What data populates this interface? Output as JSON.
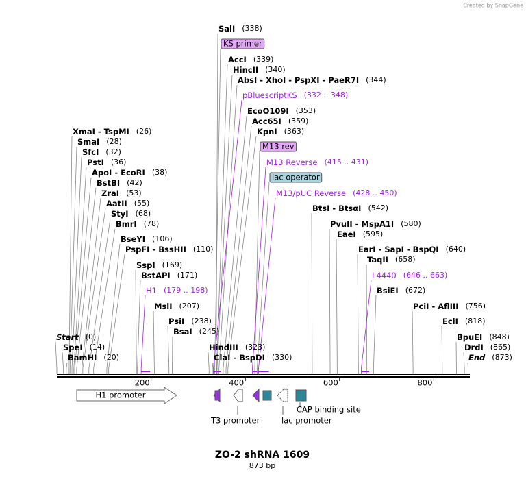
{
  "watermark": "Created by SnapGene",
  "title": "ZO-2 shRNA 1609",
  "length": "873 bp",
  "ruler": {
    "ticks": [
      200,
      400,
      600,
      800
    ]
  },
  "labels": [
    {
      "name": "SalI",
      "position": "(338)"
    },
    {
      "box": "KS primer",
      "color": "#e3a8f5"
    },
    {
      "name": "AccI",
      "position": "(339)"
    },
    {
      "name": "HincII",
      "position": "(340)"
    },
    {
      "name": "AbsI  - XhoI  - PspXI  - PaeR7I",
      "position": "(344)"
    },
    {
      "feature": "pBluescriptKS",
      "position": "(332 .. 348)",
      "color": "#a020f0"
    },
    {
      "name": "EcoO109I",
      "position": "(353)"
    },
    {
      "name": "Acc65I",
      "position": "(359)"
    },
    {
      "name": "KpnI",
      "position": "(363)"
    },
    {
      "box": "M13 rev",
      "color": "#e3a8f5"
    },
    {
      "feature": "M13 Reverse",
      "position": "(415 .. 431)",
      "color": "#a020f0"
    },
    {
      "box": "lac operator",
      "color": "#a8d4e0"
    },
    {
      "feature": "M13/pUC Reverse",
      "position": "(428 .. 450)",
      "color": "#a020f0"
    },
    {
      "name": "BtsI  - BtsαI",
      "position": "(542)"
    },
    {
      "name": "PvuII  - MspA1I",
      "position": "(580)"
    },
    {
      "name": "EaeI",
      "position": "(595)"
    },
    {
      "name": "EarI  - SapI  - BspQI",
      "position": "(640)"
    },
    {
      "name": "TaqII",
      "position": "(658)"
    },
    {
      "feature": "L4440",
      "position": "(646 .. 663)",
      "color": "#a020f0"
    },
    {
      "name": "BsiEI",
      "position": "(672)"
    },
    {
      "name": "PciI  - AflIII",
      "position": "(756)"
    },
    {
      "name": "EclI",
      "position": "(818)"
    },
    {
      "name": "BpuEI",
      "position": "(848)"
    },
    {
      "name": "DrdI",
      "position": "(865)"
    },
    {
      "end": "End",
      "position": "(873)"
    },
    {
      "name": "XmaI  - TspMI",
      "position": "(26)"
    },
    {
      "name": "SmaI",
      "position": "(28)"
    },
    {
      "name": "SfcI",
      "position": "(32)"
    },
    {
      "name": "PstI",
      "position": "(36)"
    },
    {
      "name": "ApoI  - EcoRI",
      "position": "(38)"
    },
    {
      "name": "BstBI",
      "position": "(42)"
    },
    {
      "name": "ZraI",
      "position": "(53)"
    },
    {
      "name": "AatII",
      "position": "(55)"
    },
    {
      "name": "StyI",
      "position": "(68)"
    },
    {
      "name": "BmrI",
      "position": "(78)"
    },
    {
      "name": "BseYI",
      "position": "(106)"
    },
    {
      "name": "PspFI  - BssHII",
      "position": "(110)"
    },
    {
      "name": "SspI",
      "position": "(169)"
    },
    {
      "name": "BstAPI",
      "position": "(171)"
    },
    {
      "feature": "H1",
      "position": "(179 .. 198)",
      "color": "#a020f0"
    },
    {
      "name": "MslI",
      "position": "(207)"
    },
    {
      "name": "PsiI",
      "position": "(238)"
    },
    {
      "name": "BsaI",
      "position": "(245)"
    },
    {
      "name": "HindIII",
      "position": "(323)"
    },
    {
      "name": "ClaI  - BspDI",
      "position": "(330)"
    },
    {
      "end": "Start",
      "position": "(0)"
    },
    {
      "name": "SpeI",
      "position": "(14)"
    },
    {
      "name": "BamHI",
      "position": "(20)"
    }
  ],
  "features": [
    "H1 promoter",
    "T3 promoter",
    "lac promoter",
    "CAP binding site"
  ]
}
